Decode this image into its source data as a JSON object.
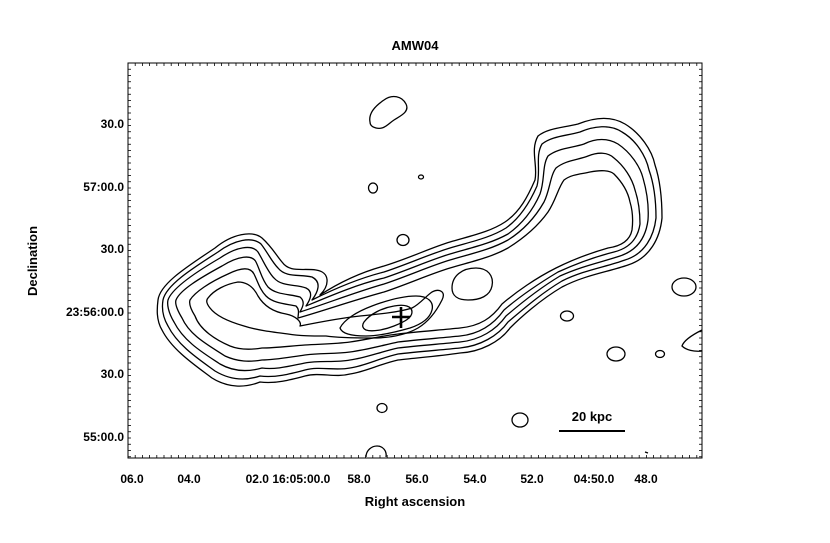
{
  "chart_data": {
    "type": "contour",
    "title": "AMW04",
    "xlabel": "Right ascension",
    "ylabel": "Declination",
    "x_ticks": [
      "06.0",
      "04.0",
      "02.0 16:05:00.0",
      "58.0",
      "56.0",
      "54.0",
      "52.0",
      "04:50.0",
      "48.0"
    ],
    "y_ticks": [
      "30.0",
      "57:00.0",
      "30.0",
      "23:56:00.0",
      "30.0",
      "55:00.0"
    ],
    "contour_levels": 7,
    "scale_bar": {
      "label": "20 kpc",
      "length_kpc": 20
    },
    "marker": {
      "symbol": "plus",
      "meaning": "source position"
    },
    "grid": false,
    "colors": {
      "line": "#000000",
      "background": "#ffffff"
    }
  }
}
